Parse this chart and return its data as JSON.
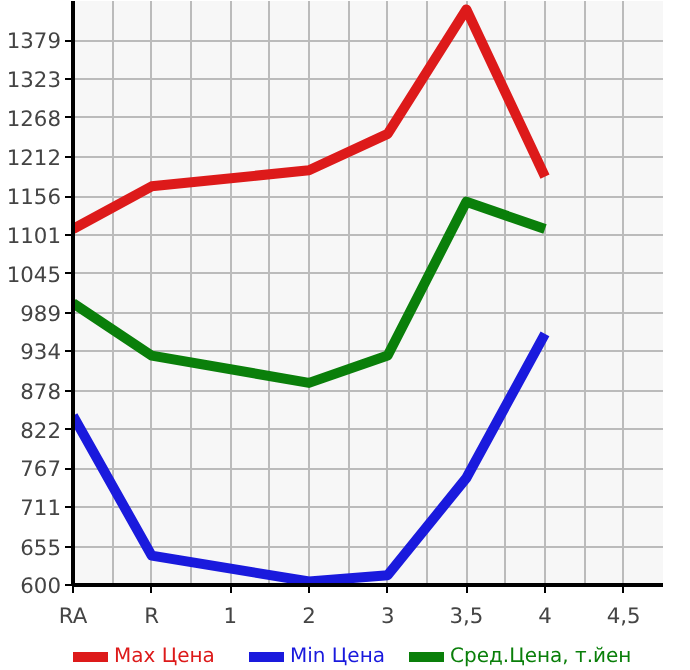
{
  "chart_data": {
    "type": "line",
    "categories": [
      "RA",
      "R",
      "1",
      "2",
      "3",
      "3,5",
      "4",
      "4,5"
    ],
    "series": [
      {
        "name": "Max Цена",
        "color": "#dd1a1a",
        "values": [
          1109,
          1170,
          null,
          1193,
          1245,
          1423,
          1184,
          null
        ]
      },
      {
        "name": "Min Цена",
        "color": "#1a1add",
        "values": [
          842,
          642,
          null,
          605,
          614,
          753,
          959,
          null
        ]
      },
      {
        "name": "Сред.Цена, т.йен",
        "color": "#0a7f0a",
        "values": [
          1003,
          928,
          null,
          889,
          928,
          1148,
          1109,
          null
        ]
      }
    ],
    "ylim": [
      600,
      1435
    ],
    "yticks": [
      600,
      655,
      711,
      767,
      822,
      878,
      934,
      989,
      1045,
      1101,
      1156,
      1212,
      1268,
      1323,
      1379
    ],
    "grid": true,
    "legend": "bottom",
    "marker": "none",
    "line_style": "solid"
  }
}
